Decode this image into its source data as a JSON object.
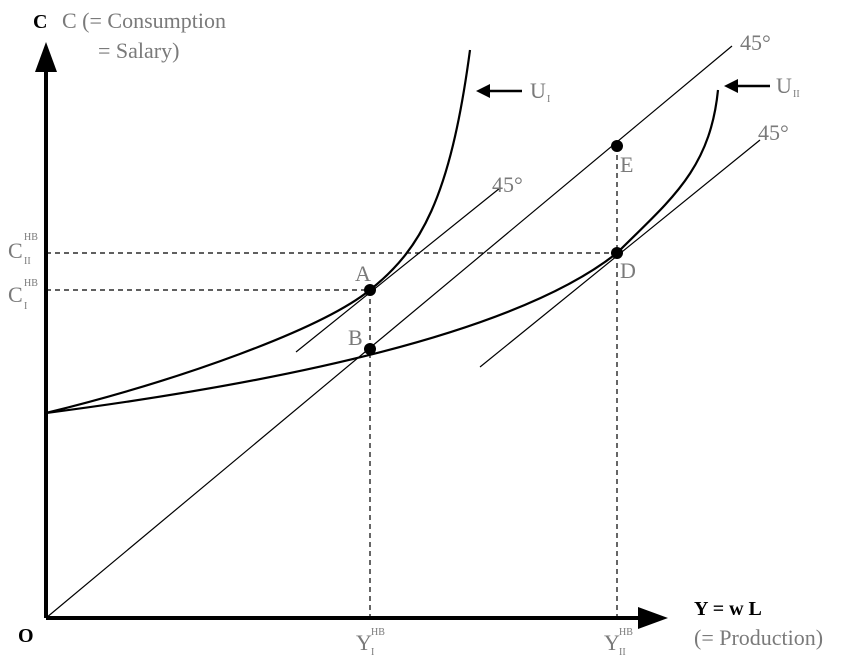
{
  "axes": {
    "y_title_line1": "C (= Consumption",
    "y_title_line2": "= Salary)",
    "x_title": "Y = w L",
    "x_subtitle": "(= Production)",
    "origin": "O"
  },
  "curves": {
    "u1_label": "U",
    "u1_sub": "I",
    "u2_label": "U",
    "u2_sub": "II"
  },
  "angle_labels": {
    "top": "45°",
    "right": "45°",
    "middle": "45°"
  },
  "points": {
    "A": "A",
    "B": "B",
    "D": "D",
    "E": "E"
  },
  "ticks": {
    "c1_main": "C",
    "c1_sup": "HB",
    "c1_sub": "I",
    "c2_main": "C",
    "c2_sup": "HB",
    "c2_sub": "II",
    "y1_main": "Y",
    "y1_sup": "HB",
    "y1_sub": "I",
    "y2_main": "Y",
    "y2_sup": "HB",
    "y2_sub": "II"
  }
}
